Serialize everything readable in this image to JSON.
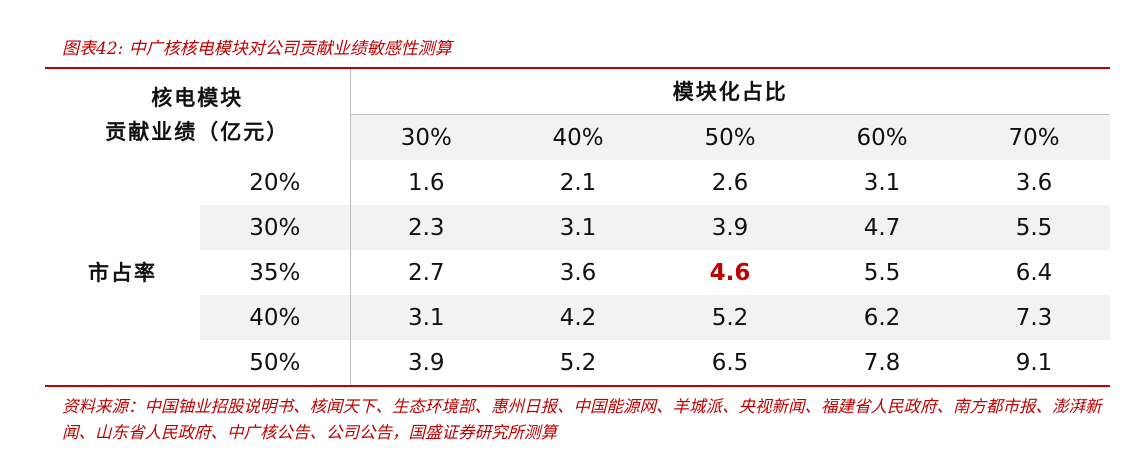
{
  "title": "图表42:  中广核核电模块对公司贡献业绩敏感性测算",
  "table": {
    "corner_header": [
      "核电模块",
      "贡献业绩（亿元）"
    ],
    "column_group_header": "模块化占比",
    "columns": [
      "30%",
      "40%",
      "50%",
      "60%",
      "70%"
    ],
    "row_group_header": "市占率",
    "rows": [
      {
        "label": "20%",
        "values": [
          "1.6",
          "2.1",
          "2.6",
          "3.1",
          "3.6"
        ]
      },
      {
        "label": "30%",
        "values": [
          "2.3",
          "3.1",
          "3.9",
          "4.7",
          "5.5"
        ]
      },
      {
        "label": "35%",
        "values": [
          "2.7",
          "3.6",
          "4.6",
          "5.5",
          "6.4"
        ]
      },
      {
        "label": "40%",
        "values": [
          "3.1",
          "4.2",
          "5.2",
          "6.2",
          "7.3"
        ]
      },
      {
        "label": "50%",
        "values": [
          "3.9",
          "5.2",
          "6.5",
          "7.8",
          "9.1"
        ]
      }
    ]
  },
  "source": "资料来源：中国铀业招股说明书、核闻天下、生态环境部、惠州日报、中国能源网、羊城派、央视新闻、福建省人民政府、南方都市报、澎湃新闻、山东省人民政府、中广核公告、公司公告，国盛证券研究所测算"
}
